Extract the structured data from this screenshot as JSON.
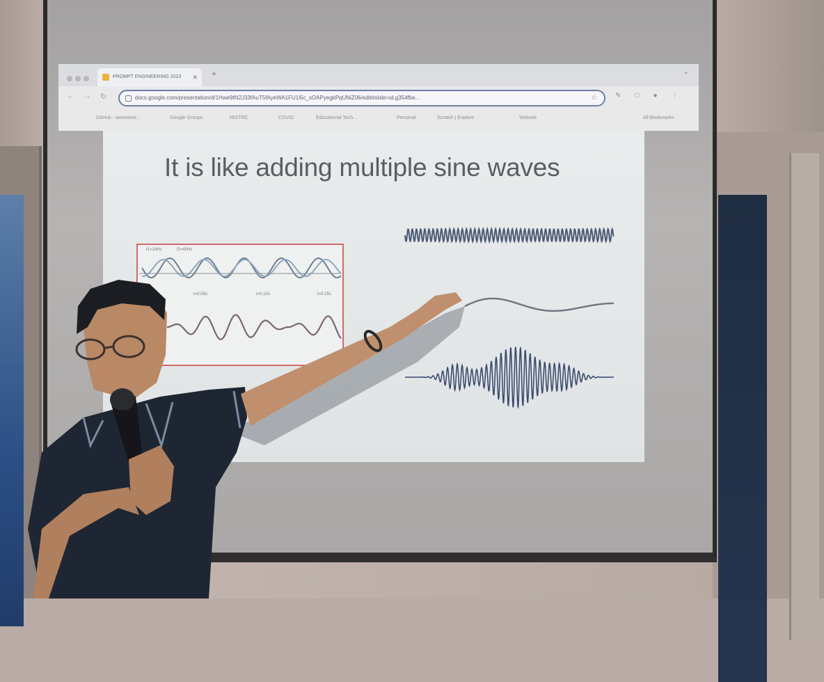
{
  "browser": {
    "tab_title": "PROMPT ENGINEERING 2023",
    "url": "docs.google.com/presentation/d/1Hwe9tN2J33fAuT5fAyeWA1FU1i5c_sOAPyegkPqUNiZ06/edit#slide=id.g354fbe...",
    "bookmarks": [
      "GitHub - awesome...",
      "Google Groups",
      "MISTRC",
      "COVID",
      "Educational Tech...",
      "Personal",
      "Scratch | Explore",
      "Website"
    ],
    "all_bookmarks": "All Bookmarks"
  },
  "slide": {
    "title": "It is like adding multiple sine waves",
    "figure_labels": [
      "f1=10Hz",
      "f2=40Hz",
      "t=0.05s",
      "t=0.10s",
      "t=0.15s"
    ]
  },
  "icons": [
    "back-arrow-icon",
    "forward-arrow-icon",
    "reload-icon",
    "star-icon",
    "pencil-icon",
    "extension-icon",
    "profile-icon",
    "menu-icon"
  ]
}
